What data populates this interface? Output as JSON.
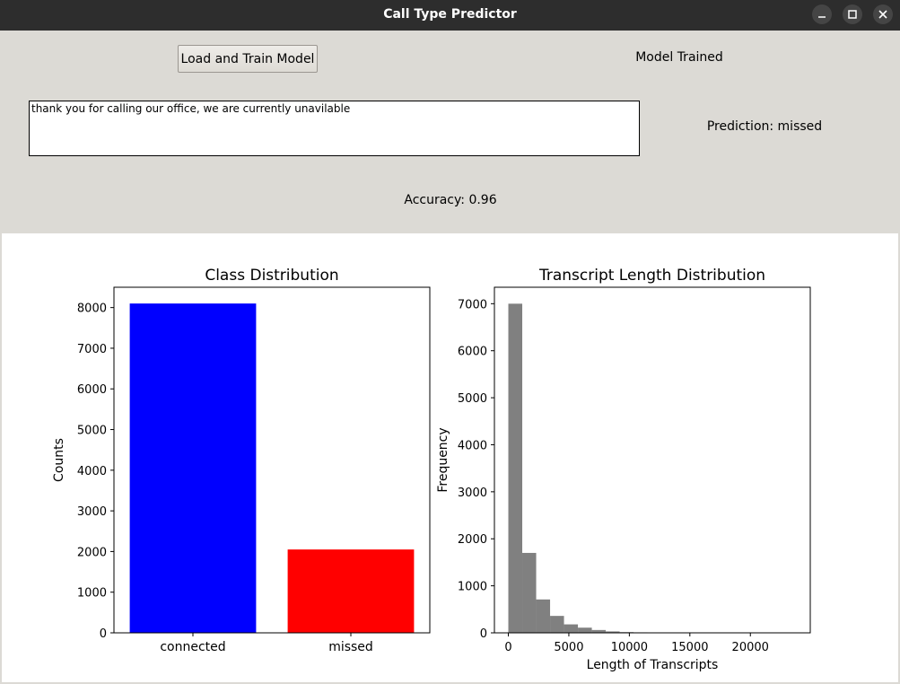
{
  "window": {
    "title": "Call Type Predictor",
    "controls": [
      "minimize-icon",
      "maximize-icon",
      "close-icon"
    ]
  },
  "controls": {
    "train_button_label": "Load and Train Model",
    "status_text": "Model Trained",
    "transcript_input_value": "thank you for calling our office, we are currently unavilable",
    "prediction_text": "Prediction: missed",
    "accuracy_text": "Accuracy: 0.96"
  },
  "chart_data": [
    {
      "type": "bar",
      "title": "Class Distribution",
      "xlabel": "",
      "ylabel": "Counts",
      "categories": [
        "connected",
        "missed"
      ],
      "values": [
        8100,
        2050
      ],
      "colors": [
        "#0000ff",
        "#ff0000"
      ],
      "ylim": [
        0,
        8500
      ],
      "yticks": [
        0,
        1000,
        2000,
        3000,
        4000,
        5000,
        6000,
        7000,
        8000
      ],
      "grid": false
    },
    {
      "type": "bar",
      "title": "Transcript Length Distribution",
      "xlabel": "Length of Transcripts",
      "ylabel": "Frequency",
      "bin_edges": [
        0,
        1150,
        2300,
        3450,
        4600,
        5750,
        6900,
        8050,
        9200,
        10350,
        11500,
        12650,
        13800,
        14950,
        16100,
        17250,
        18400,
        19550,
        20700,
        21850,
        23000
      ],
      "values": [
        7000,
        1700,
        710,
        360,
        180,
        110,
        60,
        30,
        15,
        10,
        5,
        3,
        2,
        2,
        1,
        1,
        0,
        0,
        0,
        1
      ],
      "color": "#808080",
      "xlim": [
        -1150,
        24950
      ],
      "ylim": [
        0,
        7350
      ],
      "xticks": [
        0,
        5000,
        10000,
        15000,
        20000
      ],
      "yticks": [
        0,
        1000,
        2000,
        3000,
        4000,
        5000,
        6000,
        7000
      ],
      "grid": false
    }
  ]
}
